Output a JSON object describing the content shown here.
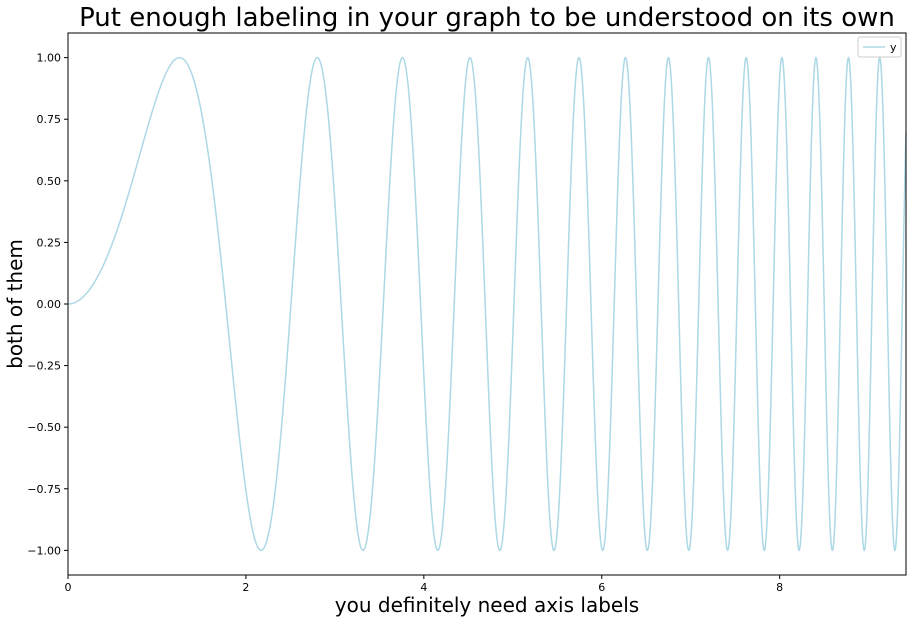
{
  "chart_data": {
    "type": "line",
    "title": "Put enough labeling in your graph to be understood on its own",
    "xlabel": "you definitely need axis labels",
    "ylabel": "both of them",
    "function": "y = sin(x^2)",
    "x_range": [
      0,
      9.42
    ],
    "xlim": [
      0,
      9.42
    ],
    "ylim": [
      -1.1,
      1.1
    ],
    "xticks": [
      0,
      2,
      4,
      6,
      8
    ],
    "xtick_labels": [
      "0",
      "2",
      "4",
      "6",
      "8"
    ],
    "yticks": [
      1.0,
      0.75,
      0.5,
      0.25,
      0.0,
      -0.25,
      -0.5,
      -0.75,
      -1.0
    ],
    "ytick_labels": [
      "1.00",
      "0.75",
      "0.50",
      "0.25",
      "0.00",
      "−0.25",
      "−0.50",
      "−0.75",
      "−1.00"
    ],
    "grid": false,
    "legend_position": "top-right",
    "series": [
      {
        "name": "y",
        "color": "#add8e6"
      }
    ]
  }
}
